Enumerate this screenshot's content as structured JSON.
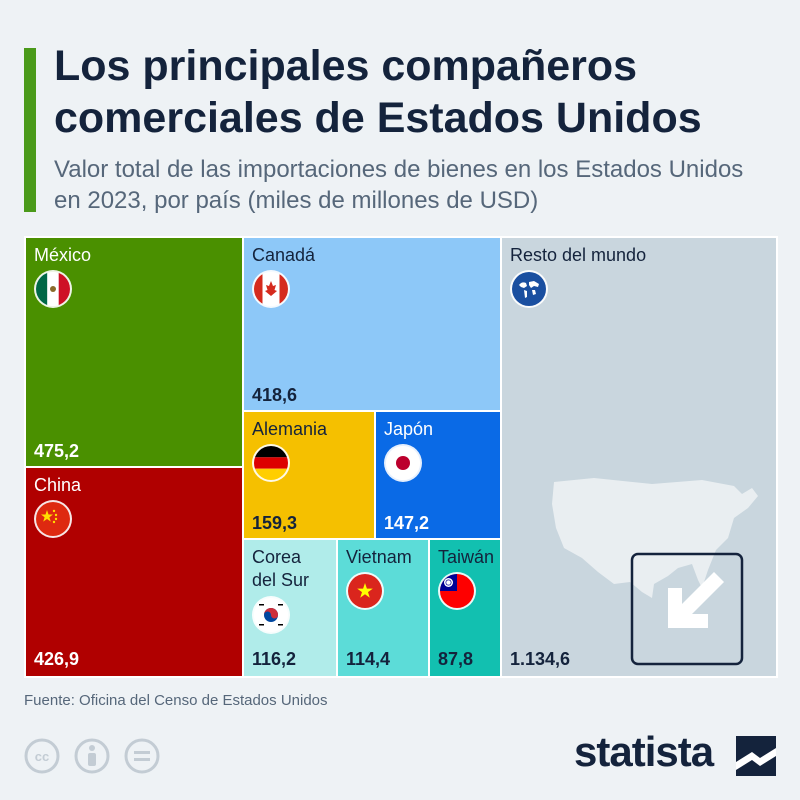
{
  "header": {
    "title": "Los principales compañeros comerciales de Estados Unidos",
    "subtitle": "Valor total de las importaciones de bienes en los Estados Unidos en 2023, por país (miles de millones de USD)"
  },
  "chart_data": {
    "type": "treemap",
    "unit": "miles de millones de USD",
    "items": [
      {
        "name": "México",
        "value": 475.2,
        "label": "475,2",
        "color": "#4a9000",
        "icon": "mexico-flag-icon"
      },
      {
        "name": "China",
        "value": 426.9,
        "label": "426,9",
        "color": "#b00000",
        "icon": "china-flag-icon"
      },
      {
        "name": "Canadá",
        "value": 418.6,
        "label": "418,6",
        "color": "#8dc8f8",
        "icon": "canada-flag-icon"
      },
      {
        "name": "Alemania",
        "value": 159.3,
        "label": "159,3",
        "color": "#f5c000",
        "icon": "germany-flag-icon"
      },
      {
        "name": "Japón",
        "value": 147.2,
        "label": "147,2",
        "color": "#0a6ae6",
        "icon": "japan-flag-icon"
      },
      {
        "name": "Corea del Sur",
        "value": 116.2,
        "label": "116,2",
        "color": "#b0ecea",
        "icon": "south-korea-flag-icon"
      },
      {
        "name": "Vietnam",
        "value": 114.4,
        "label": "114,4",
        "color": "#5cdcd8",
        "icon": "vietnam-flag-icon"
      },
      {
        "name": "Taiwán",
        "value": 87.8,
        "label": "87,8",
        "color": "#12c0b0",
        "icon": "taiwan-flag-icon"
      },
      {
        "name": "Resto del mundo",
        "value": 1134.6,
        "label": "1.134,6",
        "color": "#c9d6de",
        "icon": "globe-icon"
      }
    ]
  },
  "footer": {
    "source": "Fuente: Oficina del Censo de Estados Unidos",
    "logo": "statista"
  }
}
